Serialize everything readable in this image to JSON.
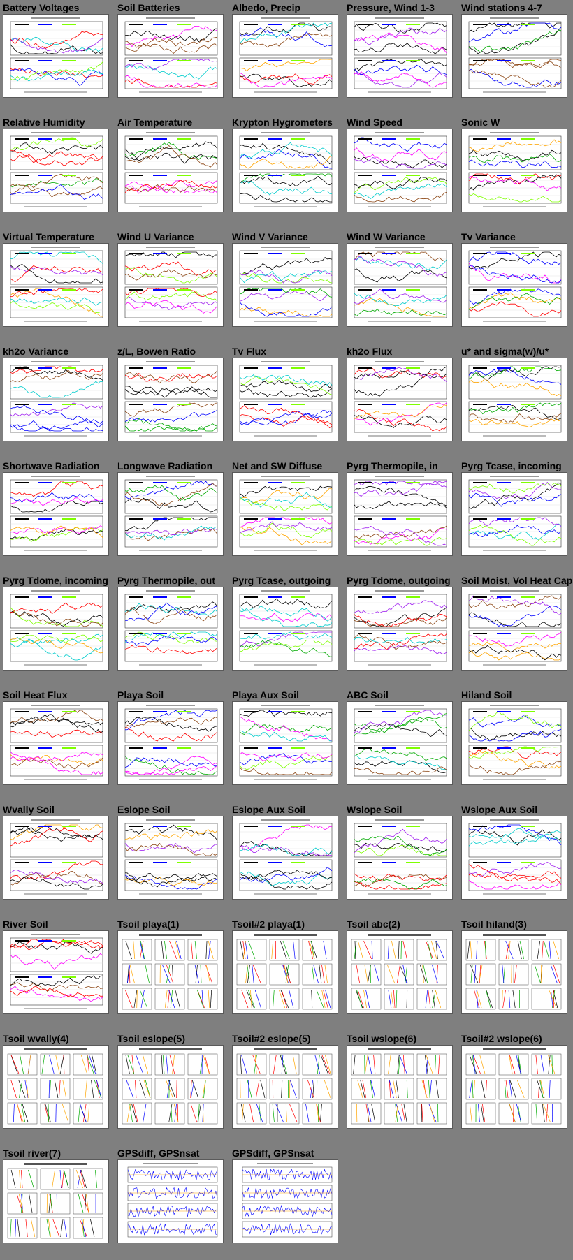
{
  "plots": [
    {
      "title": "Battery Voltages",
      "kind": "ts"
    },
    {
      "title": "Soil Batteries",
      "kind": "ts"
    },
    {
      "title": "Albedo, Precip",
      "kind": "ts"
    },
    {
      "title": "Pressure, Wind 1-3",
      "kind": "ts"
    },
    {
      "title": "Wind stations 4-7",
      "kind": "ts"
    },
    {
      "title": "Relative Humidity",
      "kind": "ts"
    },
    {
      "title": "Air Temperature",
      "kind": "ts"
    },
    {
      "title": "Krypton Hygrometers",
      "kind": "ts"
    },
    {
      "title": "Wind Speed",
      "kind": "ts"
    },
    {
      "title": "Sonic W",
      "kind": "ts"
    },
    {
      "title": "Virtual Temperature",
      "kind": "ts"
    },
    {
      "title": "Wind U Variance",
      "kind": "ts"
    },
    {
      "title": "Wind V Variance",
      "kind": "ts"
    },
    {
      "title": "Wind W Variance",
      "kind": "ts"
    },
    {
      "title": "Tv Variance",
      "kind": "ts"
    },
    {
      "title": "kh2o Variance",
      "kind": "ts"
    },
    {
      "title": "z/L, Bowen Ratio",
      "kind": "ts"
    },
    {
      "title": "Tv Flux",
      "kind": "ts"
    },
    {
      "title": "kh2o Flux",
      "kind": "ts"
    },
    {
      "title": "u* and sigma(w)/u*",
      "kind": "ts"
    },
    {
      "title": "Shortwave Radiation",
      "kind": "ts"
    },
    {
      "title": "Longwave Radiation",
      "kind": "ts"
    },
    {
      "title": "Net and SW Diffuse",
      "kind": "ts"
    },
    {
      "title": "Pyrg Thermopile, in",
      "kind": "ts"
    },
    {
      "title": "Pyrg Tcase, incoming",
      "kind": "ts"
    },
    {
      "title": "Pyrg Tdome, incoming",
      "kind": "ts"
    },
    {
      "title": "Pyrg Thermopile, out",
      "kind": "ts"
    },
    {
      "title": "Pyrg Tcase, outgoing",
      "kind": "ts"
    },
    {
      "title": "Pyrg Tdome, outgoing",
      "kind": "ts"
    },
    {
      "title": "Soil Moist, Vol Heat Cap",
      "kind": "ts"
    },
    {
      "title": "Soil Heat Flux",
      "kind": "ts"
    },
    {
      "title": "Playa Soil",
      "kind": "ts"
    },
    {
      "title": "Playa Aux Soil",
      "kind": "ts"
    },
    {
      "title": "ABC Soil",
      "kind": "ts"
    },
    {
      "title": "Hiland Soil",
      "kind": "ts"
    },
    {
      "title": "Wvally Soil",
      "kind": "ts"
    },
    {
      "title": "Eslope Soil",
      "kind": "ts"
    },
    {
      "title": "Eslope Aux Soil",
      "kind": "ts"
    },
    {
      "title": "Wslope Soil",
      "kind": "ts"
    },
    {
      "title": "Wslope Aux Soil",
      "kind": "ts"
    },
    {
      "title": "River Soil",
      "kind": "ts"
    },
    {
      "title": "Tsoil playa(1)",
      "kind": "tsoil"
    },
    {
      "title": "Tsoil#2 playa(1)",
      "kind": "tsoil"
    },
    {
      "title": "Tsoil abc(2)",
      "kind": "tsoil"
    },
    {
      "title": "Tsoil hiland(3)",
      "kind": "tsoil"
    },
    {
      "title": "Tsoil wvally(4)",
      "kind": "tsoil"
    },
    {
      "title": "Tsoil eslope(5)",
      "kind": "tsoil"
    },
    {
      "title": "Tsoil#2 eslope(5)",
      "kind": "tsoil"
    },
    {
      "title": "Tsoil wslope(6)",
      "kind": "tsoil"
    },
    {
      "title": "Tsoil#2 wslope(6)",
      "kind": "tsoil"
    },
    {
      "title": "Tsoil river(7)",
      "kind": "tsoil"
    },
    {
      "title": "GPSdiff, GPSnsat",
      "kind": "gps"
    },
    {
      "title": "GPSdiff, GPSnsat",
      "kind": "gps"
    }
  ],
  "colors": {
    "background": "#7f7f7f",
    "series": [
      "#000000",
      "#ff0000",
      "#00aa00",
      "#0000ff",
      "#ffa500",
      "#a020f0",
      "#7fff00",
      "#00cccc",
      "#ff00ff",
      "#8b4513"
    ]
  }
}
